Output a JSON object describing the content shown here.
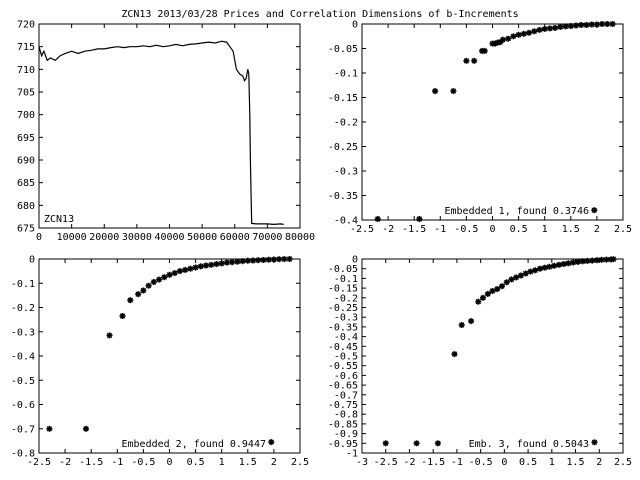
{
  "title": "ZCN13 2013/03/28 Prices and Correlation Dimensions of b-Increments",
  "colors": {
    "line": "#000000",
    "background": "#ffffff"
  },
  "chart_data": [
    {
      "type": "line",
      "legend": "ZCN13",
      "legend_location": "bottom-left",
      "xlim": [
        0,
        80000
      ],
      "ylim": [
        675,
        720
      ],
      "xticks": [
        0,
        10000,
        20000,
        30000,
        40000,
        50000,
        60000,
        70000,
        80000
      ],
      "yticks": [
        675,
        680,
        685,
        690,
        695,
        700,
        705,
        710,
        715,
        720
      ],
      "tick_labels_x": [
        "0",
        "10000",
        "20000",
        "30000",
        "40000",
        "50000",
        "60000",
        "70000",
        "80000"
      ],
      "tick_labels_y": [
        "675",
        "680",
        "685",
        "690",
        "695",
        "700",
        "705",
        "710",
        "715",
        "720"
      ],
      "x": [
        0,
        800,
        1500,
        2500,
        3500,
        5000,
        6500,
        8000,
        10000,
        12000,
        14000,
        16000,
        18000,
        20000,
        22000,
        24000,
        26000,
        28000,
        30000,
        32000,
        34000,
        36000,
        38000,
        40000,
        42000,
        44000,
        46000,
        48000,
        50000,
        52000,
        54000,
        56000,
        57500,
        58500,
        59500,
        60500,
        61500,
        62500,
        63000,
        63500,
        64000,
        64300,
        64600,
        64800,
        65000,
        65200,
        65600,
        66500,
        68000,
        70000,
        72000,
        74000,
        75000
      ],
      "values": [
        715,
        713,
        714,
        712,
        712.5,
        712,
        713,
        713.5,
        714,
        713.5,
        714,
        714.2,
        714.5,
        714.5,
        714.8,
        715,
        714.8,
        715,
        715,
        715.2,
        715,
        715.3,
        715,
        715.2,
        715.5,
        715.2,
        715.5,
        715.6,
        715.8,
        716,
        715.8,
        716.2,
        716,
        715,
        714,
        710,
        709,
        708.5,
        707.5,
        708,
        710,
        709,
        700,
        690,
        682,
        676,
        676,
        675.9,
        675.9,
        675.9,
        675.8,
        675.9,
        675.8
      ],
      "title": "",
      "xlabel": "",
      "ylabel": ""
    },
    {
      "type": "scatter",
      "legend": "Embedded 1, found 0.3746",
      "legend_location": "bottom-right",
      "xlim": [
        -2.5,
        2.5
      ],
      "ylim": [
        -0.4,
        0
      ],
      "xticks": [
        -2.5,
        -2,
        -1.5,
        -1,
        -0.5,
        0,
        0.5,
        1,
        1.5,
        2,
        2.5
      ],
      "yticks": [
        -0.4,
        -0.35,
        -0.3,
        -0.25,
        -0.2,
        -0.15,
        -0.1,
        -0.05,
        0
      ],
      "tick_labels_x": [
        "-2.5",
        "-2",
        "-1.5",
        "-1",
        "-0.5",
        "0",
        "0.5",
        "1",
        "1.5",
        "2",
        "2.5"
      ],
      "tick_labels_y": [
        "-0.4",
        "-0.35",
        "-0.3",
        "-0.25",
        "-0.2",
        "-0.15",
        "-0.1",
        "-0.05",
        "0"
      ],
      "x": [
        -2.2,
        -1.4,
        -1.1,
        -0.75,
        -0.5,
        -0.35,
        -0.2,
        -0.15,
        0.0,
        0.05,
        0.1,
        0.15,
        0.2,
        0.3,
        0.4,
        0.5,
        0.6,
        0.7,
        0.8,
        0.9,
        1.0,
        1.1,
        1.2,
        1.3,
        1.4,
        1.5,
        1.6,
        1.7,
        1.8,
        1.9,
        2.0,
        2.1,
        2.2,
        2.3,
        1.95
      ],
      "values": [
        -0.398,
        -0.398,
        -0.137,
        -0.137,
        -0.075,
        -0.075,
        -0.055,
        -0.055,
        -0.04,
        -0.04,
        -0.038,
        -0.037,
        -0.032,
        -0.03,
        -0.025,
        -0.022,
        -0.02,
        -0.018,
        -0.015,
        -0.012,
        -0.01,
        -0.009,
        -0.008,
        -0.006,
        -0.005,
        -0.004,
        -0.003,
        -0.002,
        -0.002,
        -0.001,
        -0.001,
        0.0,
        0.0,
        0.0,
        -0.38
      ],
      "title": "",
      "xlabel": "",
      "ylabel": ""
    },
    {
      "type": "scatter",
      "legend": "Embedded 2, found 0.9447",
      "legend_location": "bottom-right",
      "xlim": [
        -2.5,
        2.5
      ],
      "ylim": [
        -0.8,
        0
      ],
      "xticks": [
        -2.5,
        -2,
        -1.5,
        -1,
        -0.5,
        0,
        0.5,
        1,
        1.5,
        2,
        2.5
      ],
      "yticks": [
        -0.8,
        -0.7,
        -0.6,
        -0.5,
        -0.4,
        -0.3,
        -0.2,
        -0.1,
        0
      ],
      "tick_labels_x": [
        "-2.5",
        "-2",
        "-1.5",
        "-1",
        "-0.5",
        "0",
        "0.5",
        "1",
        "1.5",
        "2",
        "2.5"
      ],
      "tick_labels_y": [
        "-0.8",
        "-0.7",
        "-0.6",
        "-0.5",
        "-0.4",
        "-0.3",
        "-0.2",
        "-0.1",
        "0"
      ],
      "x": [
        -2.3,
        -1.6,
        -1.15,
        -0.9,
        -0.75,
        -0.6,
        -0.5,
        -0.4,
        -0.3,
        -0.2,
        -0.1,
        0.0,
        0.1,
        0.2,
        0.3,
        0.4,
        0.5,
        0.6,
        0.7,
        0.8,
        0.9,
        1.0,
        1.1,
        1.2,
        1.3,
        1.4,
        1.5,
        1.6,
        1.7,
        1.8,
        1.9,
        2.0,
        2.1,
        2.2,
        2.3,
        1.95
      ],
      "values": [
        -0.7,
        -0.7,
        -0.315,
        -0.235,
        -0.17,
        -0.145,
        -0.13,
        -0.11,
        -0.095,
        -0.085,
        -0.075,
        -0.065,
        -0.058,
        -0.05,
        -0.045,
        -0.04,
        -0.035,
        -0.03,
        -0.027,
        -0.024,
        -0.021,
        -0.018,
        -0.015,
        -0.013,
        -0.011,
        -0.009,
        -0.007,
        -0.006,
        -0.005,
        -0.004,
        -0.003,
        -0.002,
        -0.001,
        -0.0005,
        0.0,
        -0.755
      ],
      "title": "",
      "xlabel": "",
      "ylabel": ""
    },
    {
      "type": "scatter",
      "legend": "Emb. 3, found 0.5043",
      "legend_location": "bottom-right",
      "xlim": [
        -3,
        2.5
      ],
      "ylim": [
        -1,
        0
      ],
      "xticks": [
        -3,
        -2.5,
        -2,
        -1.5,
        -1,
        -0.5,
        0,
        0.5,
        1,
        1.5,
        2,
        2.5
      ],
      "yticks": [
        -1,
        -0.95,
        -0.9,
        -0.85,
        -0.8,
        -0.75,
        -0.7,
        -0.65,
        -0.6,
        -0.55,
        -0.5,
        -0.45,
        -0.4,
        -0.35,
        -0.3,
        -0.25,
        -0.2,
        -0.15,
        -0.1,
        -0.05,
        0
      ],
      "tick_labels_x": [
        "-3",
        "-2.5",
        "-2",
        "-1.5",
        "-1",
        "-0.5",
        "0",
        "0.5",
        "1",
        "1.5",
        "2",
        "2.5"
      ],
      "tick_labels_y": [
        "-1",
        "-0.95",
        "-0.9",
        "-0.85",
        "-0.8",
        "-0.75",
        "-0.7",
        "-0.65",
        "-0.6",
        "-0.55",
        "-0.5",
        "-0.45",
        "-0.4",
        "-0.35",
        "-0.3",
        "-0.25",
        "-0.2",
        "-0.15",
        "-0.1",
        "-0.05",
        "0"
      ],
      "x": [
        -2.5,
        -1.85,
        -1.4,
        -1.05,
        -0.9,
        -0.7,
        -0.55,
        -0.45,
        -0.35,
        -0.25,
        -0.15,
        -0.05,
        0.05,
        0.15,
        0.25,
        0.35,
        0.45,
        0.55,
        0.65,
        0.75,
        0.85,
        0.95,
        1.05,
        1.15,
        1.25,
        1.35,
        1.45,
        1.55,
        1.65,
        1.75,
        1.85,
        1.95,
        2.05,
        2.15,
        2.25,
        2.3,
        1.9
      ],
      "values": [
        -0.95,
        -0.95,
        -0.95,
        -0.49,
        -0.34,
        -0.32,
        -0.22,
        -0.2,
        -0.18,
        -0.165,
        -0.155,
        -0.14,
        -0.12,
        -0.105,
        -0.095,
        -0.085,
        -0.075,
        -0.065,
        -0.058,
        -0.05,
        -0.045,
        -0.04,
        -0.035,
        -0.03,
        -0.026,
        -0.022,
        -0.018,
        -0.015,
        -0.012,
        -0.01,
        -0.008,
        -0.006,
        -0.004,
        -0.003,
        -0.002,
        -0.001,
        -0.945
      ],
      "title": "",
      "xlabel": "",
      "ylabel": ""
    }
  ]
}
